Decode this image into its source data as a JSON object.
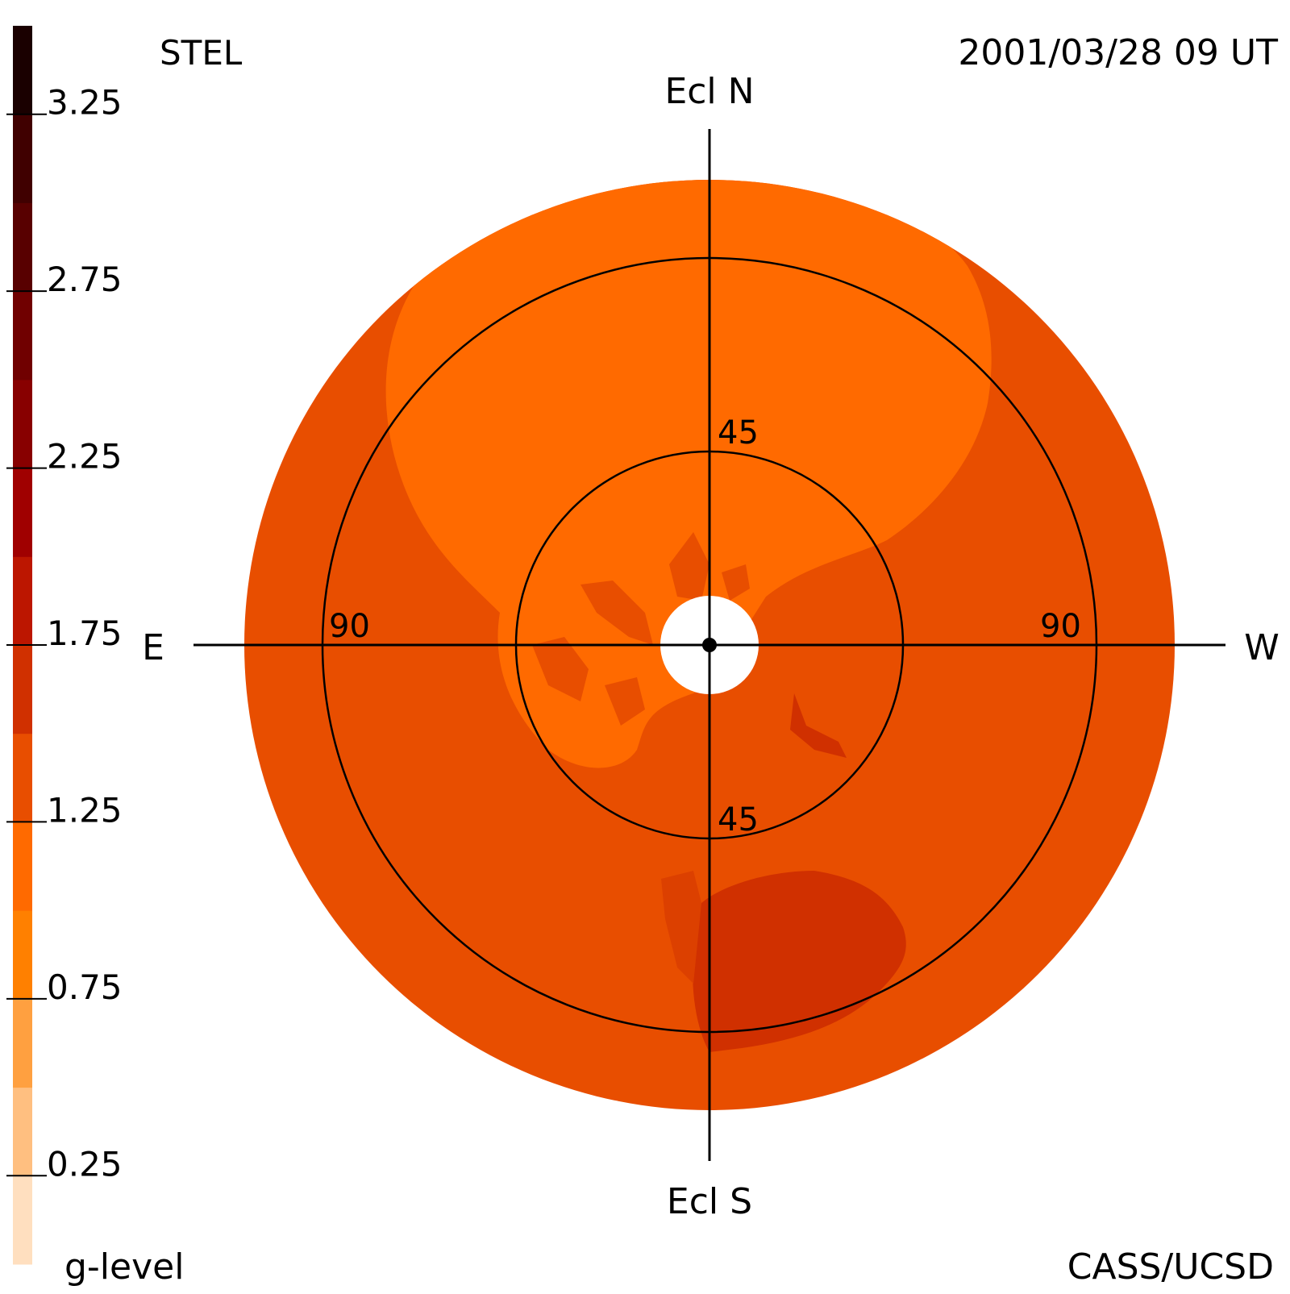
{
  "header": {
    "left_label": "STEL",
    "right_label": "2001/03/28 09 UT"
  },
  "footer": {
    "left_label": "g-level",
    "right_label": "CASS/UCSD"
  },
  "chart_data": {
    "type": "heatmap",
    "projection": "polar sky map (Hammer-Aitoff style)",
    "direction_labels": {
      "top": "Ecl N",
      "bottom": "Ecl S",
      "left": "E",
      "right": "W"
    },
    "elongation_rings": [
      {
        "value": 45,
        "labels": [
          "45",
          "45"
        ]
      },
      {
        "value": 90,
        "labels": [
          "90",
          "90"
        ]
      }
    ],
    "max_elongation": 120,
    "color_scale": {
      "label": "g-level",
      "min": 0,
      "max": 3.5,
      "tick_values": [
        0.25,
        0.75,
        1.25,
        1.75,
        2.25,
        2.75,
        3.25
      ],
      "tick_labels": [
        "0.25",
        "0.75",
        "1.25",
        "1.75",
        "2.25",
        "2.75",
        "3.25"
      ],
      "bands": [
        {
          "from": 0.0,
          "to": 0.25,
          "color": "#ffdfbf"
        },
        {
          "from": 0.25,
          "to": 0.5,
          "color": "#ffbf80"
        },
        {
          "from": 0.5,
          "to": 0.75,
          "color": "#ffa040"
        },
        {
          "from": 0.75,
          "to": 1.0,
          "color": "#ff8000"
        },
        {
          "from": 1.0,
          "to": 1.25,
          "color": "#ff6a00"
        },
        {
          "from": 1.25,
          "to": 1.5,
          "color": "#e84e00"
        },
        {
          "from": 1.5,
          "to": 1.75,
          "color": "#d03000"
        },
        {
          "from": 1.75,
          "to": 2.0,
          "color": "#bc1600"
        },
        {
          "from": 2.0,
          "to": 2.25,
          "color": "#a00000"
        },
        {
          "from": 2.25,
          "to": 2.5,
          "color": "#880000"
        },
        {
          "from": 2.5,
          "to": 2.75,
          "color": "#700000"
        },
        {
          "from": 2.75,
          "to": 3.0,
          "color": "#580000"
        },
        {
          "from": 3.0,
          "to": 3.25,
          "color": "#400000"
        },
        {
          "from": 3.25,
          "to": 3.5,
          "color": "#1a0000"
        }
      ]
    },
    "regions": [
      {
        "name": "background disk",
        "g_level": 1.3,
        "color": "#e84e00"
      },
      {
        "name": "northern lobe",
        "g_level": 1.1,
        "color": "#ff6a00"
      },
      {
        "name": "southern enhancement",
        "g_level": 1.6,
        "color": "#d03000"
      }
    ],
    "sun_occulter": true
  }
}
